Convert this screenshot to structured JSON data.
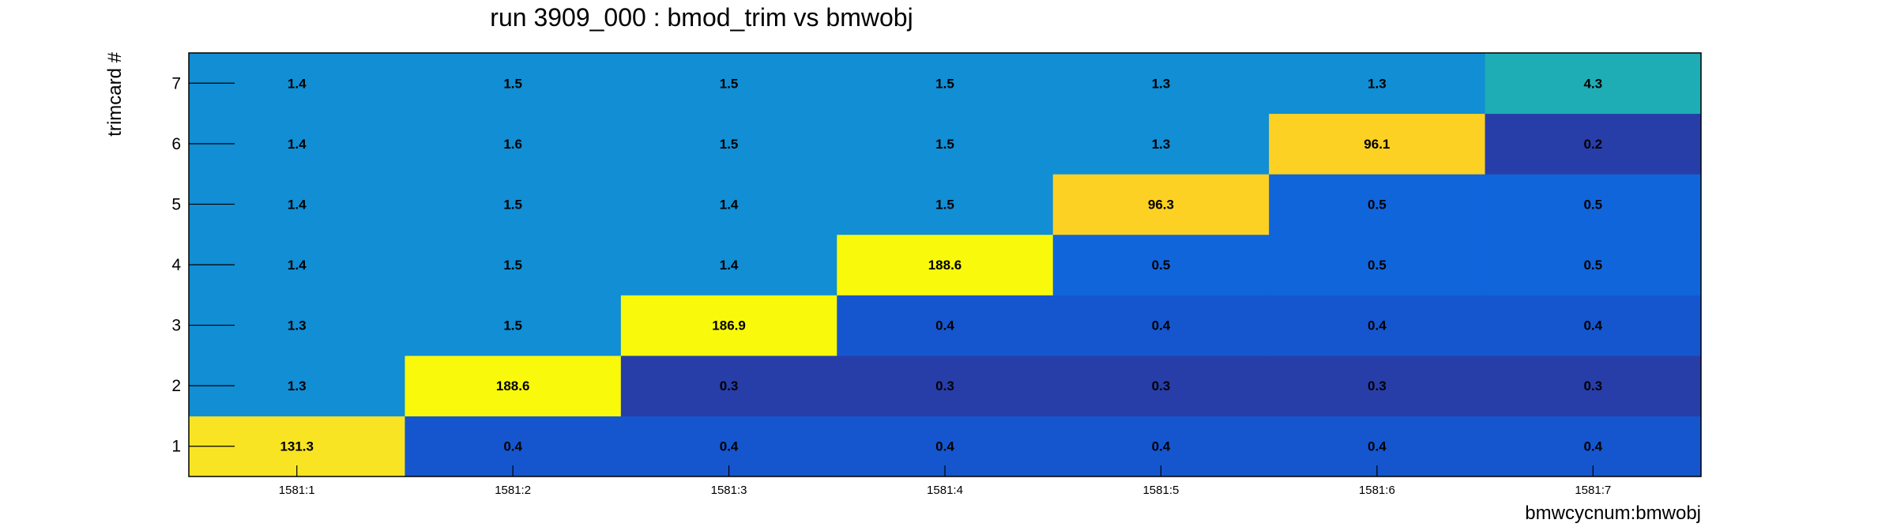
{
  "chart_data": {
    "type": "heatmap",
    "title": "run 3909_000 : bmod_trim vs bmwobj",
    "xlabel": "bmwcycnum:bmwobj",
    "ylabel": "trimcard #",
    "x_categories": [
      "1581:1",
      "1581:2",
      "1581:3",
      "1581:4",
      "1581:5",
      "1581:6",
      "1581:7"
    ],
    "y_categories": [
      "1",
      "2",
      "3",
      "4",
      "5",
      "6",
      "7"
    ],
    "values": [
      [
        131.3,
        0.4,
        0.4,
        0.4,
        0.4,
        0.4,
        0.4
      ],
      [
        1.3,
        188.6,
        0.3,
        0.3,
        0.3,
        0.3,
        0.3
      ],
      [
        1.3,
        1.5,
        186.9,
        0.4,
        0.4,
        0.4,
        0.4
      ],
      [
        1.4,
        1.5,
        1.4,
        188.6,
        0.5,
        0.5,
        0.5
      ],
      [
        1.4,
        1.5,
        1.4,
        1.5,
        96.3,
        0.5,
        0.5
      ],
      [
        1.4,
        1.6,
        1.5,
        1.5,
        1.3,
        96.1,
        0.2
      ],
      [
        1.4,
        1.5,
        1.5,
        1.5,
        1.3,
        1.3,
        4.3
      ]
    ],
    "colors": {
      "low": "#273ea8",
      "mid_low": "#1556cf",
      "mid": "#1165db",
      "mid_high": "#118ed4",
      "teal": "#1eadb5",
      "gold": "#fcd124",
      "yellow_orange": "#f9e423",
      "yellow": "#f9f90b"
    },
    "grid": false,
    "legend": "none"
  }
}
